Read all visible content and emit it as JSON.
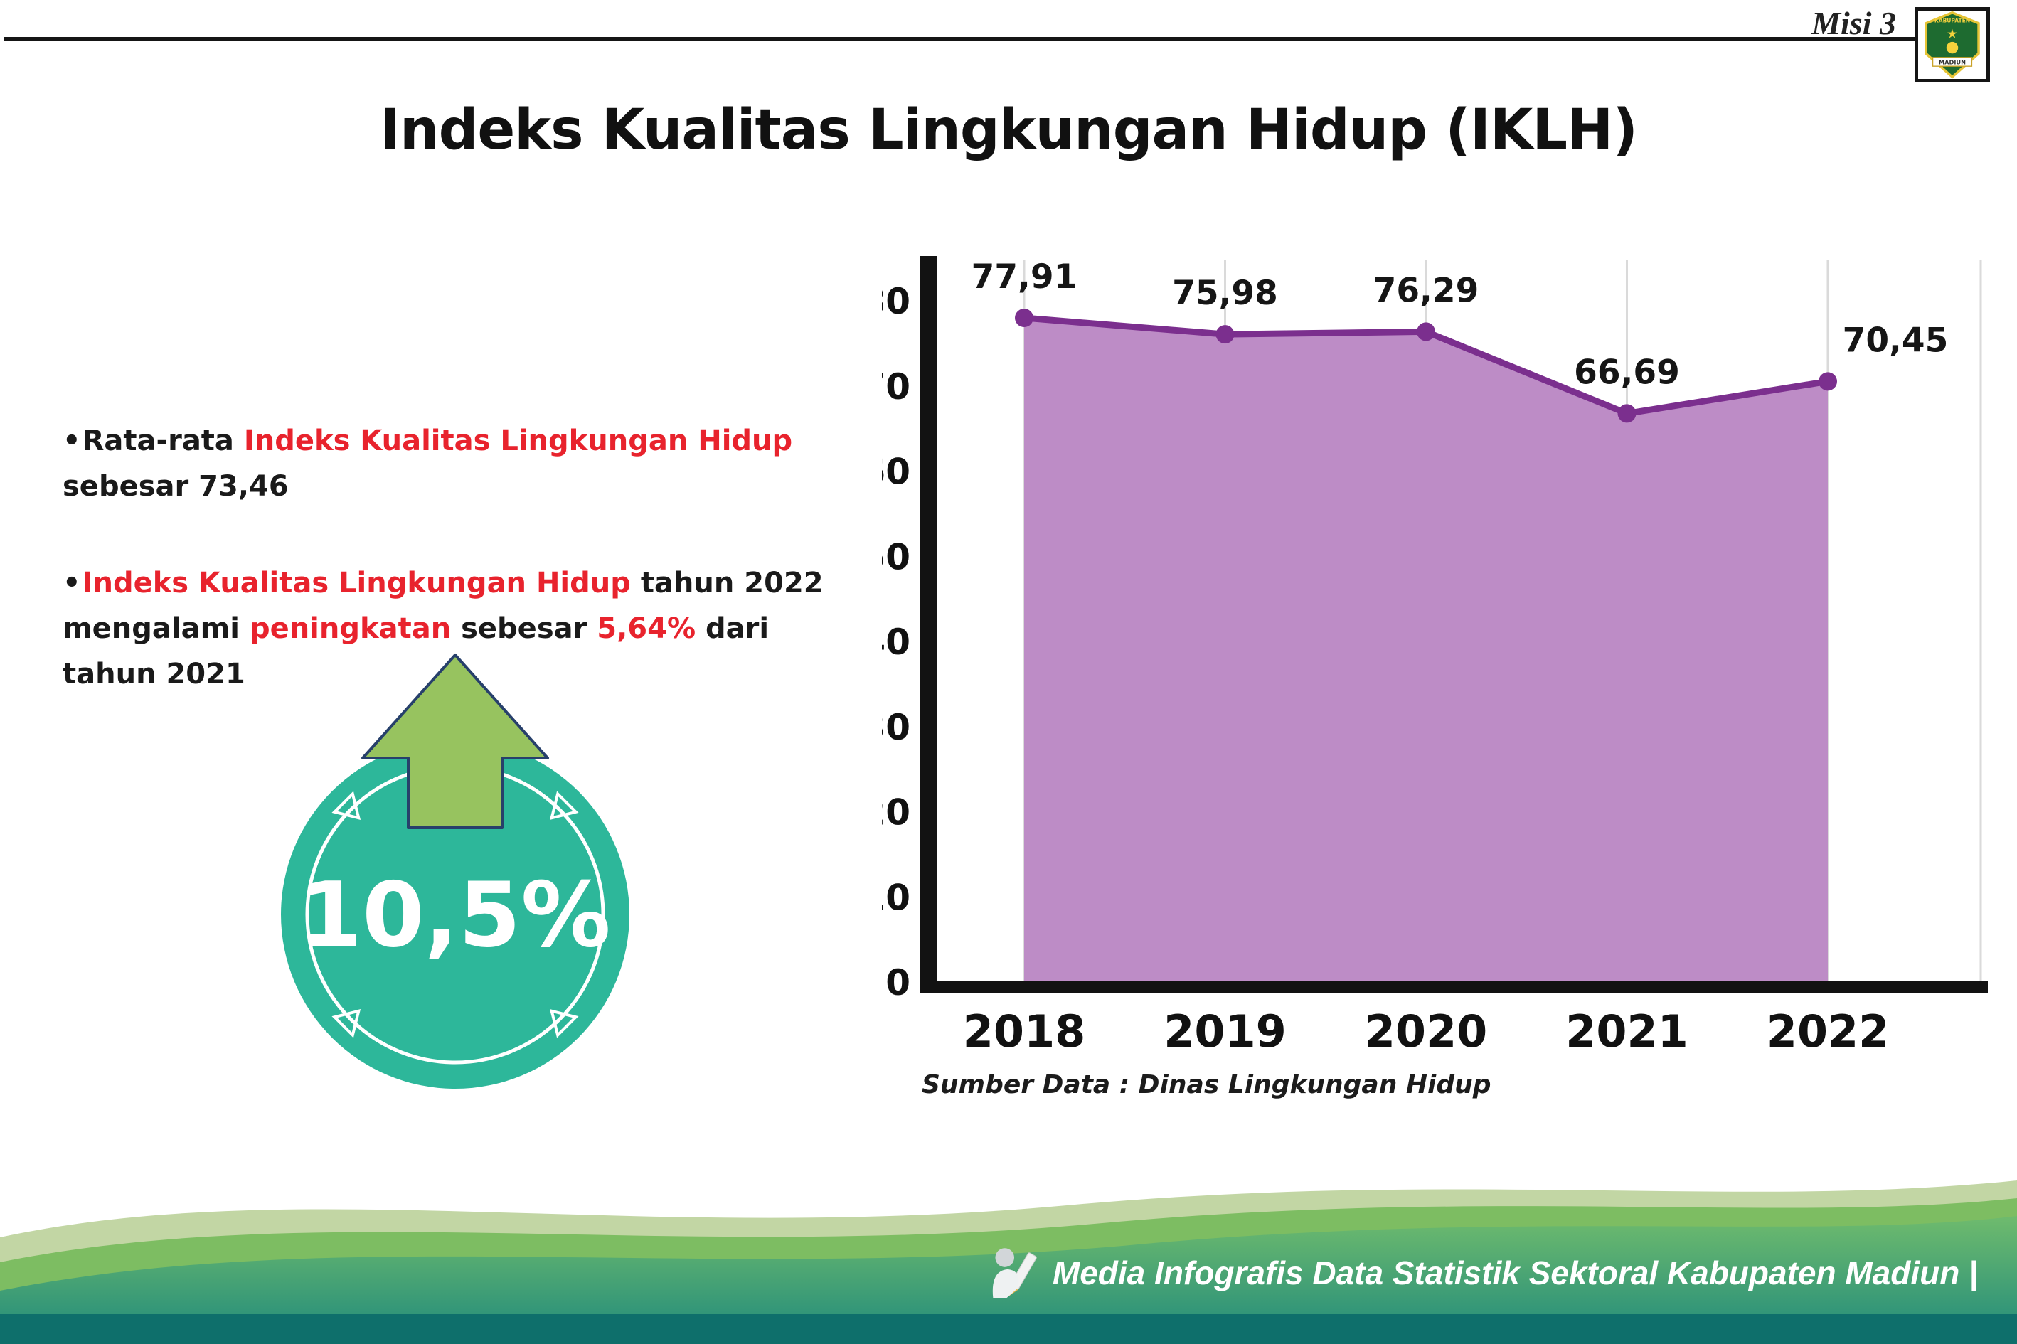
{
  "page": {
    "misi_label": "Misi 3",
    "title": "Indeks Kualitas Lingkungan Hidup (IKLH)"
  },
  "logo": {
    "top_text": "KABUPATEN",
    "bottom_text": "MADIUN"
  },
  "bullets": {
    "marker": "•",
    "item1": {
      "pre": "Rata-rata ",
      "red": "Indeks Kualitas Lingkungan Hidup",
      "post": " sebesar 73,46"
    },
    "item2": {
      "red1": "Indeks Kualitas Lingkungan Hidup",
      "mid1": " tahun 2022 mengalami ",
      "red2": "peningkatan",
      "mid2": " sebesar ",
      "red3": "5,64%",
      "post": " dari tahun 2021"
    }
  },
  "badge": {
    "value": "10,5%"
  },
  "chart_data": {
    "type": "area",
    "title": "",
    "categories": [
      "2018",
      "2019",
      "2020",
      "2021",
      "2022"
    ],
    "values": [
      77.91,
      75.98,
      76.29,
      66.69,
      70.45
    ],
    "value_labels": [
      "77,91",
      "75,98",
      "76,29",
      "66,69",
      "70,45"
    ],
    "ylim": [
      0,
      80
    ],
    "ytick_step": 10,
    "grid": "vertical",
    "legend": "none",
    "source_caption": "Sumber Data : Dinas Lingkungan Hidup"
  },
  "footer": {
    "credit": "Media Infografis Data Statistik Sektoral Kabupaten Madiun |"
  },
  "colors": {
    "accent_red": "#e8232d",
    "area_fill": "#bd8cc6",
    "line": "#7b2f8e",
    "badge_teal": "#2db79a",
    "arrow_green": "#97c35f",
    "axis_black": "#121212",
    "footer_teal": "#1f8a7c"
  }
}
